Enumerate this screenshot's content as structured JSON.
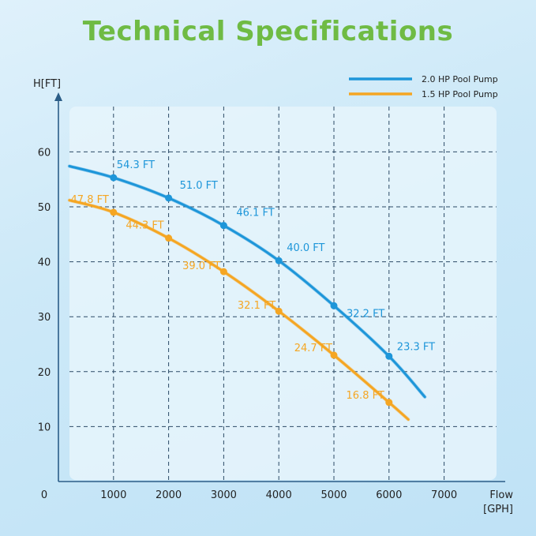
{
  "title": "Technical Specifications",
  "chart_data": {
    "type": "line",
    "title": "Technical Specifications",
    "xlabel": "Flow [GPH]",
    "ylabel": "H[FT]",
    "origin_label": "0",
    "xlim": [
      0,
      7000
    ],
    "ylim": [
      0,
      70
    ],
    "x_ticks": [
      1000,
      2000,
      3000,
      4000,
      5000,
      6000,
      7000
    ],
    "y_ticks": [
      10,
      20,
      30,
      40,
      50,
      60
    ],
    "grid": true,
    "legend_position": "top-right",
    "series": [
      {
        "name": "2.0 HP Pool Pump",
        "color": "#1e96d9",
        "x": [
          1000,
          2000,
          3000,
          4000,
          5000,
          6000
        ],
        "y": [
          54.3,
          51.0,
          46.1,
          40.0,
          32.2,
          23.3
        ],
        "labels": [
          "54.3 FT",
          "51.0 FT",
          "46.1 FT",
          "40.0 FT",
          "32.2 FT",
          "23.3 FT"
        ],
        "curve": [
          [
            200,
            57.4
          ],
          [
            1000,
            55.3
          ],
          [
            2000,
            51.6
          ],
          [
            3000,
            46.6
          ],
          [
            4000,
            40.2
          ],
          [
            5000,
            32.0
          ],
          [
            6000,
            22.8
          ],
          [
            6650,
            15.4
          ]
        ]
      },
      {
        "name": "1.5 HP Pool Pump",
        "color": "#f5a623",
        "x": [
          1000,
          2000,
          3000,
          4000,
          5000,
          6000
        ],
        "y": [
          47.8,
          44.3,
          39.0,
          32.1,
          24.7,
          16.8
        ],
        "labels": [
          "47.8 FT",
          "44.3 FT",
          "39.0 FT",
          "32.1 FT",
          "24.7 FT",
          "16.8 FT"
        ],
        "curve": [
          [
            200,
            51.2
          ],
          [
            1000,
            49.0
          ],
          [
            2000,
            44.3
          ],
          [
            3000,
            38.2
          ],
          [
            4000,
            31.0
          ],
          [
            5000,
            23.0
          ],
          [
            6000,
            14.4
          ],
          [
            6350,
            11.3
          ]
        ]
      }
    ]
  }
}
